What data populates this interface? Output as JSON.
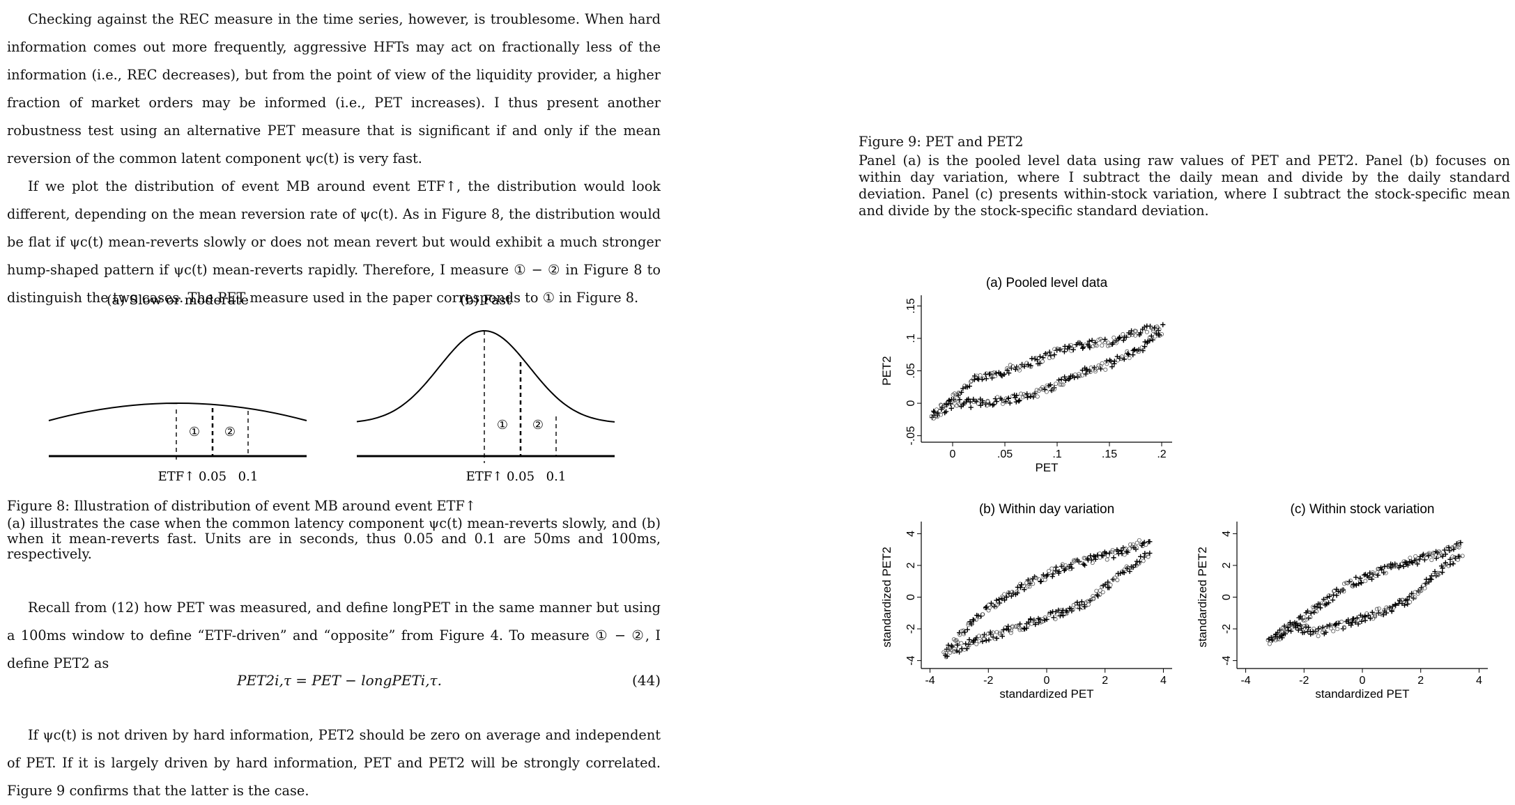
{
  "left": {
    "p1": "Checking against the REC measure in the time series, however, is troublesome. When hard information comes out more frequently, aggressive HFTs may act on fractionally less of the information (i.e., REC decreases), but from the point of view of the liquidity provider, a higher fraction of market orders may be informed (i.e., PET increases). I thus present another robustness test using an alternative PET measure that is significant if and only if the mean reversion of the common latent component ψc(t) is very fast.",
    "p2": "If we plot the distribution of event MB around event ETF↑, the distribution would look different, depending on the mean reversion rate of ψc(t). As in Figure 8, the distribution would be flat if ψc(t) mean-reverts slowly or does not mean revert but would exhibit a much stronger hump-shaped pattern if ψc(t) mean-reverts rapidly. Therefore, I measure ① − ② in Figure 8 to distinguish the two cases. The PET measure used in the paper corresponds to ① in Figure 8.",
    "fig8": {
      "panel_a_title": "(a) Slow or moderate",
      "panel_b_title": "(b) Fast",
      "label_etf": "ETF↑",
      "label_005": "0.05",
      "label_01": "0.1",
      "mark1": "①",
      "mark2": "②",
      "caption_title": "Figure 8: Illustration of distribution of event MB around event ETF↑",
      "caption_body": "(a) illustrates the case when the common latency component ψc(t) mean-reverts slowly, and (b) when it mean-reverts fast. Units are in seconds, thus 0.05 and 0.1 are 50ms and 100ms, respectively."
    },
    "p3": "Recall from (12) how PET was measured, and define longPET in the same manner but using a 100ms window to define “ETF-driven” and “opposite” from Figure 4. To measure ① − ②, I define PET2 as",
    "equation": "PET2i,τ = PET − longPETi,τ.",
    "equation_number": "(44)",
    "p4": "If ψc(t) is not driven by hard information, PET2 should be zero on average and independent of PET. If it is largely driven by hard information, PET and PET2 will be strongly correlated. Figure 9 confirms that the latter is the case."
  },
  "right": {
    "caption_title": "Figure 9: PET and PET2",
    "caption_body": "Panel (a) is the pooled level data using raw values of PET and PET2. Panel (b) focuses on within day variation, where I subtract the daily mean and divide by the daily standard deviation. Panel (c) presents within-stock variation, where I subtract the stock-specific mean and divide by the stock-specific standard deviation."
  },
  "chart_data": [
    {
      "type": "scatter",
      "title": "(a) Pooled level data",
      "xlabel": "PET",
      "ylabel": "PET2",
      "xlim": [
        -0.03,
        0.21
      ],
      "ylim": [
        -0.06,
        0.16
      ],
      "xticks": [
        "0",
        ".05",
        ".1",
        ".15",
        ".2"
      ],
      "xtick_values": [
        0,
        0.05,
        0.1,
        0.15,
        0.2
      ],
      "yticks": [
        "-.05",
        "0",
        ".05",
        ".1",
        ".15"
      ],
      "ytick_values": [
        -0.05,
        0,
        0.05,
        0.1,
        0.15
      ],
      "series": [
        {
          "x": [
            -0.02,
            0.0,
            0.02,
            0.05,
            0.08,
            0.1,
            0.12,
            0.15,
            0.18,
            0.2
          ],
          "y": [
            -0.02,
            0.01,
            0.035,
            0.05,
            0.065,
            0.08,
            0.09,
            0.095,
            0.11,
            0.12
          ]
        },
        {
          "x": [
            -0.02,
            0.0,
            0.02,
            0.05,
            0.08,
            0.1,
            0.12,
            0.15,
            0.18,
            0.2
          ],
          "y": [
            -0.025,
            0.0,
            0.0,
            0.005,
            0.015,
            0.03,
            0.045,
            0.06,
            0.085,
            0.11
          ]
        }
      ]
    },
    {
      "type": "scatter",
      "title": "(b) Within day variation",
      "xlabel": "standardized PET",
      "ylabel": "standardized PET2",
      "xlim": [
        -4.3,
        4.3
      ],
      "ylim": [
        -4.5,
        4.5
      ],
      "xticks": [
        "-4",
        "-2",
        "0",
        "2",
        "4"
      ],
      "xtick_values": [
        -4,
        -2,
        0,
        2,
        4
      ],
      "yticks": [
        "-4",
        "-2",
        "0",
        "2",
        "4"
      ],
      "ytick_values": [
        -4,
        -2,
        0,
        2,
        4
      ],
      "series": [
        {
          "x": [
            -3.5,
            -2.5,
            -1.5,
            -0.5,
            0.5,
            1.5,
            2.5,
            3.5
          ],
          "y": [
            -3.5,
            -1.5,
            0.0,
            1.0,
            1.8,
            2.4,
            2.8,
            3.6
          ]
        },
        {
          "x": [
            -3.5,
            -2.5,
            -1.5,
            -0.5,
            0.5,
            1.5,
            2.5,
            3.5
          ],
          "y": [
            -3.6,
            -2.8,
            -2.2,
            -1.6,
            -1.0,
            -0.2,
            1.4,
            2.8
          ]
        }
      ]
    },
    {
      "type": "scatter",
      "title": "(c) Within stock variation",
      "xlabel": "standardized PET",
      "ylabel": "standardized PET2",
      "xlim": [
        -4.3,
        4.3
      ],
      "ylim": [
        -4.5,
        4.5
      ],
      "xticks": [
        "-4",
        "-2",
        "0",
        "2",
        "4"
      ],
      "xtick_values": [
        -4,
        -2,
        0,
        2,
        4
      ],
      "yticks": [
        "-4",
        "-2",
        "0",
        "2",
        "4"
      ],
      "ytick_values": [
        -4,
        -2,
        0,
        2,
        4
      ],
      "series": [
        {
          "x": [
            -3.2,
            -2.5,
            -1.5,
            -0.5,
            0.5,
            1.5,
            2.5,
            3.4
          ],
          "y": [
            -2.9,
            -2.0,
            -0.6,
            0.8,
            1.5,
            2.2,
            2.6,
            3.3
          ]
        },
        {
          "x": [
            -3.2,
            -2.5,
            -1.5,
            -0.5,
            0.5,
            1.5,
            2.5,
            3.4
          ],
          "y": [
            -2.9,
            -1.8,
            -2.2,
            -1.7,
            -1.0,
            -0.3,
            1.4,
            2.8
          ]
        }
      ]
    }
  ]
}
